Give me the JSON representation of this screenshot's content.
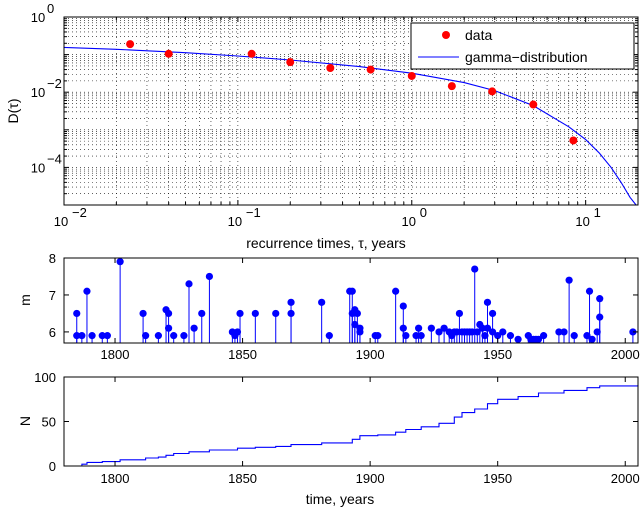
{
  "colors": {
    "markers": "#ff0000",
    "line": "#0000ff",
    "stem": "#0000ff",
    "grid": "#000000"
  },
  "chart_data": [
    {
      "type": "scatter",
      "panel": "top",
      "xscale": "log",
      "yscale": "log",
      "xlim": [
        0.01,
        20
      ],
      "ylim": [
        1e-05,
        1
      ],
      "grid": true,
      "xlabel": "recurrence times, τ, years",
      "ylabel": "D(τ)",
      "xticks": [
        {
          "value": 0.01,
          "base": "10",
          "exp": "−2"
        },
        {
          "value": 0.1,
          "base": "10",
          "exp": "−1"
        },
        {
          "value": 1,
          "base": "10",
          "exp": "0"
        },
        {
          "value": 10,
          "base": "10",
          "exp": "1"
        }
      ],
      "yticks": [
        {
          "value": 1,
          "base": "10",
          "exp": "0"
        },
        {
          "value": 0.01,
          "base": "10",
          "exp": "−2"
        },
        {
          "value": 0.0001,
          "base": "10",
          "exp": "−4"
        }
      ],
      "legend": {
        "position": "top-right",
        "entries": [
          "data",
          "gamma−distribution"
        ]
      },
      "series": [
        {
          "name": "data",
          "style": "markers",
          "points": [
            [
              0.024,
              0.19
            ],
            [
              0.04,
              0.105
            ],
            [
              0.12,
              0.105
            ],
            [
              0.2,
              0.063
            ],
            [
              0.34,
              0.044
            ],
            [
              0.58,
              0.04
            ],
            [
              1.0,
              0.027
            ],
            [
              1.7,
              0.0145
            ],
            [
              2.9,
              0.0105
            ],
            [
              5.0,
              0.0047
            ],
            [
              8.5,
              0.00052
            ]
          ]
        },
        {
          "name": "gamma−distribution",
          "style": "line",
          "points": [
            [
              0.01,
              0.155
            ],
            [
              0.02,
              0.138
            ],
            [
              0.05,
              0.112
            ],
            [
              0.1,
              0.092
            ],
            [
              0.2,
              0.072
            ],
            [
              0.5,
              0.048
            ],
            [
              1,
              0.032
            ],
            [
              2,
              0.018
            ],
            [
              3,
              0.011
            ],
            [
              5,
              0.0044
            ],
            [
              8,
              0.0012
            ],
            [
              10,
              0.00055
            ],
            [
              12,
              0.00024
            ],
            [
              14,
              0.0001
            ],
            [
              16,
              4e-05
            ],
            [
              18,
              1.6e-05
            ],
            [
              19.5,
              1e-05
            ]
          ]
        }
      ]
    },
    {
      "type": "stem",
      "panel": "middle",
      "xlim": [
        1780,
        2005
      ],
      "ylim": [
        5.7,
        8
      ],
      "ylabel": "m",
      "xticks": [
        1800,
        1850,
        1900,
        1950,
        2000
      ],
      "yticks": [
        6,
        7,
        8
      ],
      "grid": false,
      "events": [
        [
          1785,
          5.9
        ],
        [
          1785,
          6.5
        ],
        [
          1787,
          5.9
        ],
        [
          1789,
          7.1
        ],
        [
          1791,
          5.9
        ],
        [
          1795,
          5.9
        ],
        [
          1797,
          5.9
        ],
        [
          1802,
          7.9
        ],
        [
          1811,
          6.5
        ],
        [
          1812,
          5.9
        ],
        [
          1817,
          5.9
        ],
        [
          1820,
          6.6
        ],
        [
          1821,
          6.5
        ],
        [
          1821,
          6.1
        ],
        [
          1823,
          5.9
        ],
        [
          1827,
          5.9
        ],
        [
          1829,
          7.3
        ],
        [
          1831,
          6.1
        ],
        [
          1834,
          6.5
        ],
        [
          1837,
          7.5
        ],
        [
          1846,
          6.0
        ],
        [
          1847,
          5.9
        ],
        [
          1848,
          6.0
        ],
        [
          1849,
          6.5
        ],
        [
          1855,
          6.5
        ],
        [
          1863,
          6.5
        ],
        [
          1869,
          6.8
        ],
        [
          1869,
          6.5
        ],
        [
          1881,
          6.8
        ],
        [
          1884,
          5.9
        ],
        [
          1892,
          7.1
        ],
        [
          1893,
          6.5
        ],
        [
          1893,
          7.1
        ],
        [
          1894,
          6.6
        ],
        [
          1894,
          6.2
        ],
        [
          1895,
          6.5
        ],
        [
          1896,
          6.1
        ],
        [
          1896,
          6.0
        ],
        [
          1902,
          5.9
        ],
        [
          1903,
          5.9
        ],
        [
          1910,
          7.1
        ],
        [
          1913,
          6.7
        ],
        [
          1913,
          6.1
        ],
        [
          1914,
          5.9
        ],
        [
          1918,
          5.9
        ],
        [
          1919,
          6.1
        ],
        [
          1920,
          5.9
        ],
        [
          1924,
          6.1
        ],
        [
          1927,
          6.0
        ],
        [
          1929,
          6.1
        ],
        [
          1931,
          6.0
        ],
        [
          1932,
          5.9
        ],
        [
          1933,
          6.0
        ],
        [
          1934,
          6.0
        ],
        [
          1935,
          6.5
        ],
        [
          1936,
          6.0
        ],
        [
          1937,
          6.0
        ],
        [
          1938,
          6.0
        ],
        [
          1939,
          6.0
        ],
        [
          1940,
          6.0
        ],
        [
          1941,
          7.7
        ],
        [
          1942,
          6.0
        ],
        [
          1943,
          6.2
        ],
        [
          1944,
          6.1
        ],
        [
          1945,
          5.9
        ],
        [
          1946,
          6.8
        ],
        [
          1946,
          6.1
        ],
        [
          1948,
          6.5
        ],
        [
          1948,
          6.0
        ],
        [
          1950,
          5.9
        ],
        [
          1952,
          6.0
        ],
        [
          1955,
          5.9
        ],
        [
          1958,
          5.8
        ],
        [
          1962,
          5.9
        ],
        [
          1963,
          5.8
        ],
        [
          1964,
          5.8
        ],
        [
          1965,
          5.8
        ],
        [
          1966,
          5.8
        ],
        [
          1968,
          5.9
        ],
        [
          1974,
          6.0
        ],
        [
          1976,
          6.0
        ],
        [
          1978,
          7.4
        ],
        [
          1980,
          5.9
        ],
        [
          1985,
          5.9
        ],
        [
          1986,
          7.1
        ],
        [
          1987,
          5.8
        ],
        [
          1989,
          6.0
        ],
        [
          1990,
          6.9
        ],
        [
          1990,
          6.4
        ],
        [
          2003,
          6.0
        ]
      ]
    },
    {
      "type": "line",
      "panel": "bottom",
      "xlim": [
        1780,
        2005
      ],
      "ylim": [
        0,
        100
      ],
      "xlabel": "time, years",
      "ylabel": "N",
      "xticks": [
        1800,
        1850,
        1900,
        1950,
        2000
      ],
      "yticks": [
        0,
        50,
        100
      ],
      "grid": false,
      "series": [
        {
          "style": "step-line",
          "points": [
            [
              1785,
              0
            ],
            [
              1787,
              2
            ],
            [
              1789,
              4
            ],
            [
              1795,
              5
            ],
            [
              1802,
              7
            ],
            [
              1812,
              9
            ],
            [
              1817,
              10
            ],
            [
              1820,
              12
            ],
            [
              1823,
              14
            ],
            [
              1829,
              16
            ],
            [
              1837,
              18
            ],
            [
              1848,
              20
            ],
            [
              1855,
              21
            ],
            [
              1863,
              22
            ],
            [
              1869,
              24
            ],
            [
              1881,
              26
            ],
            [
              1893,
              30
            ],
            [
              1896,
              34
            ],
            [
              1903,
              35
            ],
            [
              1910,
              38
            ],
            [
              1914,
              41
            ],
            [
              1920,
              44
            ],
            [
              1927,
              48
            ],
            [
              1933,
              55
            ],
            [
              1936,
              60
            ],
            [
              1941,
              64
            ],
            [
              1946,
              70
            ],
            [
              1950,
              75
            ],
            [
              1958,
              78
            ],
            [
              1966,
              82
            ],
            [
              1976,
              85
            ],
            [
              1985,
              88
            ],
            [
              1990,
              90
            ],
            [
              2005,
              91
            ]
          ]
        }
      ]
    }
  ]
}
